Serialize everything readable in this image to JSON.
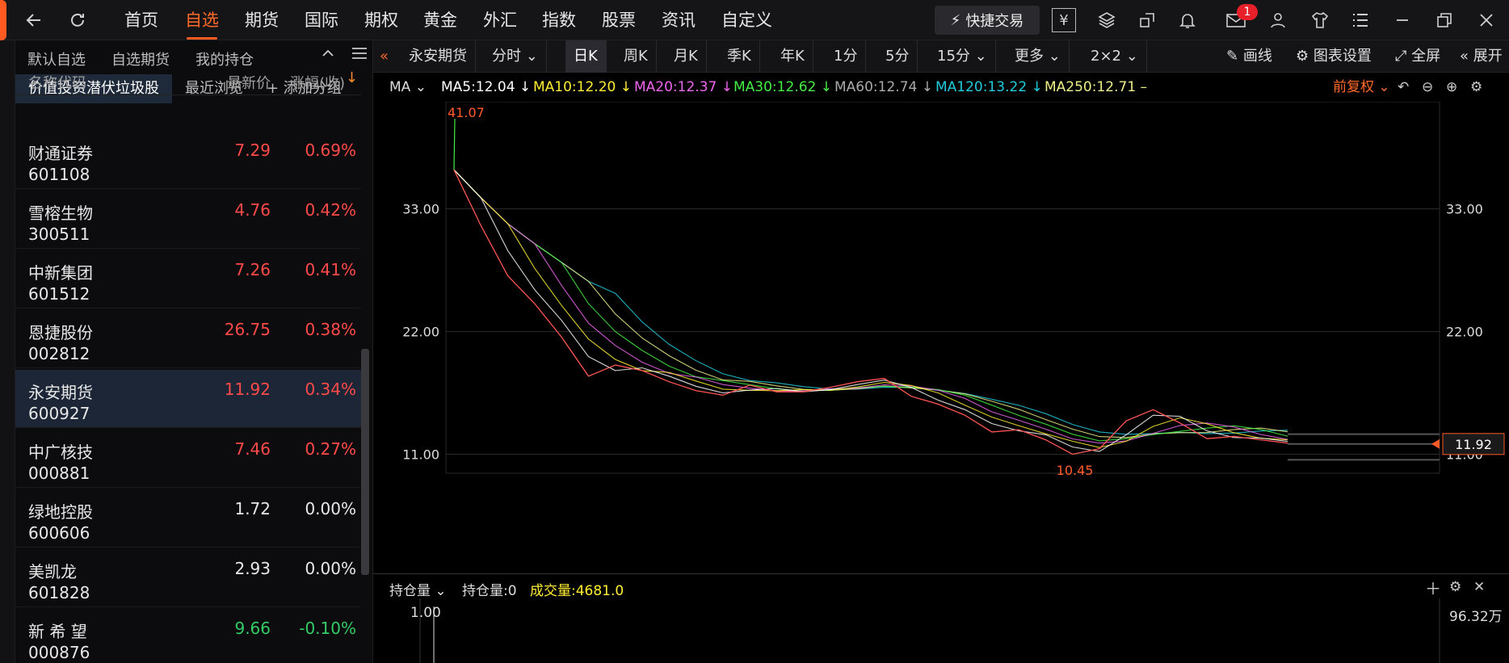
{
  "nav": {
    "items": [
      "首页",
      "自选",
      "期货",
      "国际",
      "期权",
      "黄金",
      "外汇",
      "指数",
      "股票",
      "资讯",
      "自定义"
    ],
    "active": "自选",
    "quick_trade": "快捷交易",
    "mail_badge": "1"
  },
  "left": {
    "tabs": [
      "默认自选",
      "自选期货",
      "我的持仓"
    ],
    "groups": [
      "价值投资潜伏垃圾股",
      "最近浏览",
      "+ 添加分组"
    ],
    "columns": [
      "名称代码",
      "最新价",
      "涨幅(收)"
    ],
    "stocks": [
      {
        "name": "财通证券",
        "code": "601108",
        "price": "7.29",
        "change": "0.69%",
        "dir": "up"
      },
      {
        "name": "雪榕生物",
        "code": "300511",
        "price": "4.76",
        "change": "0.42%",
        "dir": "up"
      },
      {
        "name": "中新集团",
        "code": "601512",
        "price": "7.26",
        "change": "0.41%",
        "dir": "up"
      },
      {
        "name": "恩捷股份",
        "code": "002812",
        "price": "26.75",
        "change": "0.38%",
        "dir": "up"
      },
      {
        "name": "永安期货",
        "code": "600927",
        "price": "11.92",
        "change": "0.34%",
        "dir": "up",
        "selected": true
      },
      {
        "name": "中广核技",
        "code": "000881",
        "price": "7.46",
        "change": "0.27%",
        "dir": "up"
      },
      {
        "name": "绿地控股",
        "code": "600606",
        "price": "1.72",
        "change": "0.00%",
        "dir": "flat"
      },
      {
        "name": "美凯龙",
        "code": "601828",
        "price": "2.93",
        "change": "0.00%",
        "dir": "flat"
      },
      {
        "name": "新 希 望",
        "code": "000876",
        "price": "9.66",
        "change": "-0.10%",
        "dir": "down"
      }
    ]
  },
  "toolbar": {
    "symbol": "永安期货",
    "periods": [
      "分时",
      "日K",
      "周K",
      "月K",
      "季K",
      "年K",
      "1分",
      "5分",
      "15分",
      "更多",
      "2×2"
    ],
    "active_period": "日K",
    "draw": "画线",
    "settings": "图表设置",
    "fullscreen": "全屏",
    "expand": "展开"
  },
  "indicators": {
    "label": "MA",
    "items": [
      {
        "text": "MA5:12.04",
        "color": "#ffffff",
        "arrow": "↓"
      },
      {
        "text": "MA10:12.20",
        "color": "#ffee33",
        "arrow": "↓"
      },
      {
        "text": "MA20:12.37",
        "color": "#ee66ee",
        "arrow": "↓"
      },
      {
        "text": "MA30:12.62",
        "color": "#44ee44",
        "arrow": "↓"
      },
      {
        "text": "MA60:12.74",
        "color": "#aaaaaa",
        "arrow": "↓"
      },
      {
        "text": "MA120:13.22",
        "color": "#22ccdd",
        "arrow": "↓"
      },
      {
        "text": "MA250:12.71",
        "color": "#eeee88",
        "arrow": "–"
      }
    ],
    "adjust": "前复权"
  },
  "chart_data": {
    "type": "line",
    "title": "",
    "y_ticks": [
      "33.00",
      "22.00",
      "11.00"
    ],
    "high_label": "41.07",
    "low_label": "10.45",
    "last_price": "11.92",
    "ylim": [
      10,
      42
    ],
    "series": [
      {
        "name": "",
        "values": [
          36.5,
          31.5,
          27.0,
          24.5,
          21.5,
          18.0,
          19.0,
          18.5,
          17.5,
          16.7,
          16.3,
          17.2,
          16.6,
          16.6,
          17.0,
          17.5,
          17.8,
          16.2,
          15.5,
          14.5,
          13.0,
          13.2,
          12.3,
          11.0,
          11.5,
          14.0,
          15.0,
          13.8,
          12.4,
          12.6,
          12.3,
          12.0
        ]
      }
    ]
  },
  "volume": {
    "label": "持仓量",
    "open_interest": "持仓量:0",
    "turnover": "成交量:4681.0",
    "left_tick": "1.00",
    "right_tick": "96.32万"
  }
}
